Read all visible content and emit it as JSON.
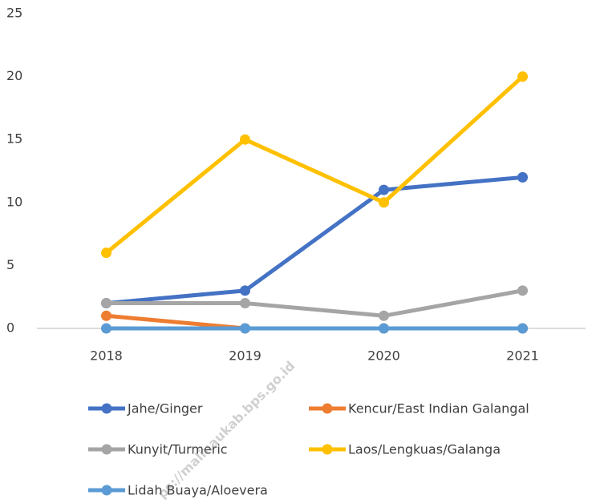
{
  "chart_data": {
    "type": "line",
    "categories": [
      "2018",
      "2019",
      "2020",
      "2021"
    ],
    "series": [
      {
        "name": "Jahe/Ginger",
        "color": "#4472c4",
        "values": [
          2,
          3,
          11,
          12
        ]
      },
      {
        "name": "Kencur/East Indian Galangal",
        "color": "#ed7d31",
        "values": [
          1,
          0,
          0,
          0
        ]
      },
      {
        "name": "Kunyit/Turmeric",
        "color": "#a5a5a5",
        "values": [
          2,
          2,
          1,
          3
        ]
      },
      {
        "name": "Laos/Lengkuas/Galanga",
        "color": "#ffc000",
        "values": [
          6,
          15,
          10,
          20
        ]
      },
      {
        "name": "Lidah Buaya/Aloevera",
        "color": "#5b9bd5",
        "values": [
          0,
          0,
          0,
          0
        ]
      }
    ],
    "ylim": [
      0,
      25
    ],
    "yticks": [
      0,
      5,
      10,
      15,
      20,
      25
    ],
    "grid": false,
    "legend": "bottom",
    "watermark": "ps://malinaukab.bps.go.id"
  }
}
